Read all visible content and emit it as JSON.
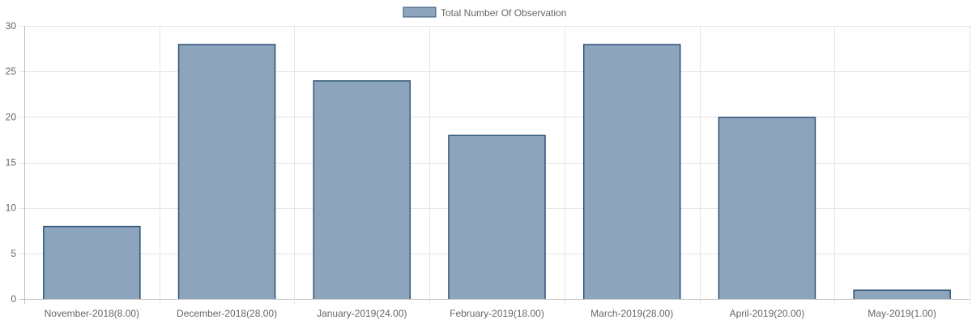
{
  "chart_data": {
    "type": "bar",
    "categories": [
      "November-2018(8.00)",
      "December-2018(28.00)",
      "January-2019(24.00)",
      "February-2019(18.00)",
      "March-2019(28.00)",
      "April-2019(20.00)",
      "May-2019(1.00)"
    ],
    "series": [
      {
        "name": "Total Number Of Observation",
        "values": [
          8,
          28,
          24,
          18,
          28,
          20,
          1
        ]
      }
    ],
    "title": "",
    "xlabel": "",
    "ylabel": "",
    "ylim": [
      0,
      30
    ],
    "yticks": [
      0,
      5,
      10,
      15,
      20,
      25,
      30
    ],
    "grid": true,
    "legend_position": "top",
    "colors": {
      "bar_fill": "#8ca5bd",
      "bar_border": "#2e5577",
      "grid": "#e5e5e5",
      "axis": "#bdbdbd",
      "text": "#666666"
    }
  }
}
